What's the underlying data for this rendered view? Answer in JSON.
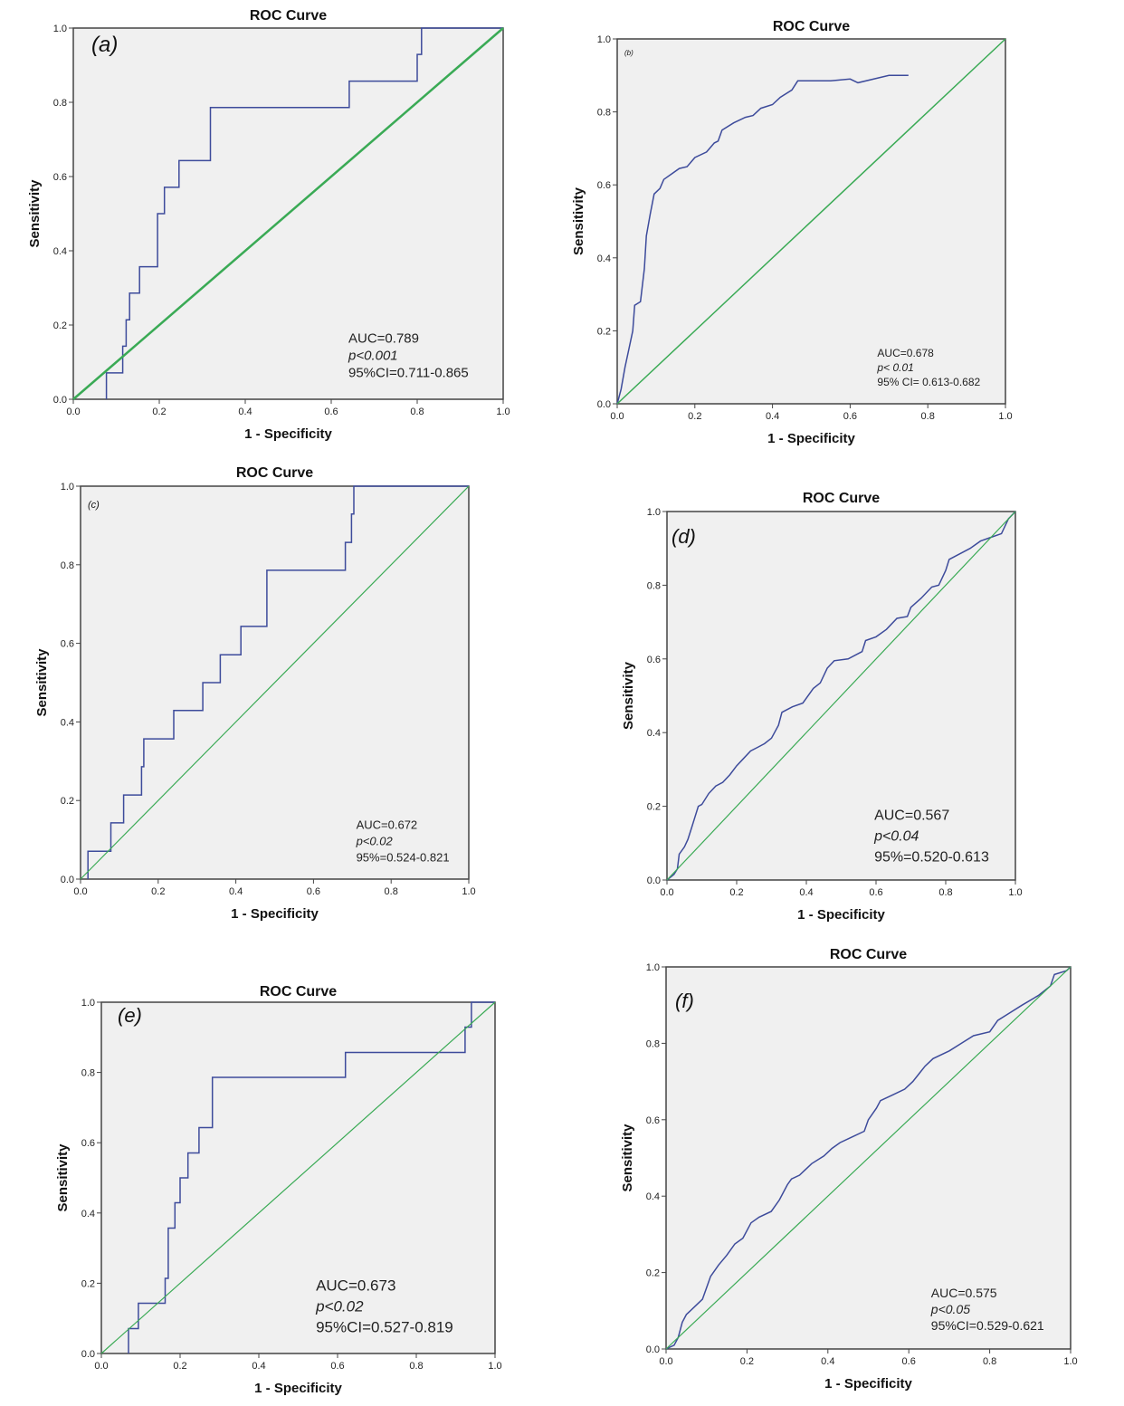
{
  "figure": {
    "colors": {
      "roc": "#3d4b9b",
      "reference": "#3aaa55",
      "plot_bg": "#f0f0f0",
      "frame": "#444444"
    }
  },
  "chart_data": [
    {
      "type": "line",
      "panel": "(a)",
      "title": "ROC Curve",
      "xlabel": "1 - Specificity",
      "ylabel": "Sensitivity",
      "xlim": [
        0,
        1
      ],
      "ylim": [
        0,
        1
      ],
      "xticks": [
        "0.0",
        "0.2",
        "0.4",
        "0.6",
        "0.8",
        "1.0"
      ],
      "yticks": [
        "0.0",
        "0.2",
        "0.4",
        "0.6",
        "0.8",
        "1.0"
      ],
      "grid": false,
      "annotations": [
        "AUC=0.789",
        "p<0.001",
        "95%CI=0.711-0.865"
      ],
      "series": [
        {
          "name": "ROC",
          "x": [
            0.077,
            0.077,
            0.115,
            0.115,
            0.123,
            0.123,
            0.131,
            0.131,
            0.154,
            0.154,
            0.196,
            0.196,
            0.212,
            0.212,
            0.246,
            0.246,
            0.319,
            0.319,
            0.642,
            0.642,
            0.8,
            0.8,
            0.81,
            0.81,
            1.0
          ],
          "y": [
            0,
            0.071,
            0.071,
            0.143,
            0.143,
            0.214,
            0.214,
            0.286,
            0.286,
            0.357,
            0.357,
            0.5,
            0.5,
            0.571,
            0.571,
            0.643,
            0.643,
            0.786,
            0.786,
            0.857,
            0.857,
            0.929,
            0.929,
            1.0,
            1.0
          ]
        },
        {
          "name": "Reference line",
          "x": [
            0,
            1
          ],
          "y": [
            0,
            1
          ]
        }
      ]
    },
    {
      "type": "line",
      "panel": "(b)",
      "title": "ROC Curve",
      "xlabel": "1 - Specificity",
      "ylabel": "Sensitivity",
      "xlim": [
        0,
        1
      ],
      "ylim": [
        0,
        1
      ],
      "xticks": [
        "0.0",
        "0.2",
        "0.4",
        "0.6",
        "0.8",
        "1.0"
      ],
      "yticks": [
        "0.0",
        "0.2",
        "0.4",
        "0.6",
        "0.8",
        "1.0"
      ],
      "grid": false,
      "annotations": [
        "AUC=0.678",
        "p< 0.01",
        "95% CI= 0.613-0.682"
      ],
      "series": [
        {
          "name": "ROC",
          "x": [
            0,
            0.01,
            0.02,
            0.03,
            0.04,
            0.045,
            0.06,
            0.07,
            0.075,
            0.085,
            0.095,
            0.11,
            0.12,
            0.14,
            0.16,
            0.18,
            0.2,
            0.23,
            0.25,
            0.26,
            0.27,
            0.3,
            0.33,
            0.35,
            0.37,
            0.4,
            0.42,
            0.45,
            0.465,
            0.55,
            0.6,
            0.62,
            0.7,
            0.75
          ],
          "y": [
            0,
            0.04,
            0.1,
            0.15,
            0.2,
            0.27,
            0.28,
            0.37,
            0.46,
            0.52,
            0.575,
            0.59,
            0.615,
            0.63,
            0.645,
            0.65,
            0.675,
            0.69,
            0.715,
            0.72,
            0.75,
            0.77,
            0.785,
            0.79,
            0.81,
            0.82,
            0.84,
            0.86,
            0.885,
            0.885,
            0.89,
            0.88,
            0.9,
            0.9
          ]
        },
        {
          "name": "Reference line",
          "x": [
            0,
            1
          ],
          "y": [
            0,
            1
          ]
        }
      ]
    },
    {
      "type": "line",
      "panel": "(c)",
      "title": "ROC Curve",
      "xlabel": "1 - Specificity",
      "ylabel": "Sensitivity",
      "xlim": [
        0,
        1
      ],
      "ylim": [
        0,
        1
      ],
      "xticks": [
        "0.0",
        "0.2",
        "0.4",
        "0.6",
        "0.8",
        "1.0"
      ],
      "yticks": [
        "0.0",
        "0.2",
        "0.4",
        "0.6",
        "0.8",
        "1.0"
      ],
      "grid": false,
      "annotations": [
        "AUC=0.672",
        "p<0.02",
        "95%=0.524-0.821"
      ],
      "series": [
        {
          "name": "ROC",
          "x": [
            0.019,
            0.019,
            0.078,
            0.078,
            0.111,
            0.111,
            0.157,
            0.157,
            0.163,
            0.163,
            0.24,
            0.24,
            0.315,
            0.315,
            0.36,
            0.36,
            0.413,
            0.413,
            0.48,
            0.48,
            0.682,
            0.682,
            0.698,
            0.698,
            0.704,
            0.704,
            1.0
          ],
          "y": [
            0,
            0.071,
            0.071,
            0.143,
            0.143,
            0.214,
            0.214,
            0.286,
            0.286,
            0.357,
            0.357,
            0.429,
            0.429,
            0.5,
            0.5,
            0.571,
            0.571,
            0.643,
            0.643,
            0.786,
            0.786,
            0.857,
            0.857,
            0.929,
            0.929,
            1.0,
            1.0
          ]
        },
        {
          "name": "Reference line",
          "x": [
            0,
            1
          ],
          "y": [
            0,
            1
          ]
        }
      ]
    },
    {
      "type": "line",
      "panel": "(d)",
      "title": "ROC Curve",
      "xlabel": "1 - Specificity",
      "ylabel": "Sensitivity",
      "xlim": [
        0,
        1
      ],
      "ylim": [
        0,
        1
      ],
      "xticks": [
        "0.0",
        "0.2",
        "0.4",
        "0.6",
        "0.8",
        "1.0"
      ],
      "yticks": [
        "0.0",
        "0.2",
        "0.4",
        "0.6",
        "0.8",
        "1.0"
      ],
      "grid": false,
      "annotations": [
        "AUC=0.567",
        "p<0.04",
        "95%=0.520-0.613"
      ],
      "series": [
        {
          "name": "ROC",
          "x": [
            0,
            0.02,
            0.03,
            0.035,
            0.05,
            0.06,
            0.07,
            0.08,
            0.09,
            0.1,
            0.12,
            0.14,
            0.16,
            0.18,
            0.2,
            0.22,
            0.24,
            0.26,
            0.28,
            0.3,
            0.32,
            0.33,
            0.36,
            0.39,
            0.42,
            0.44,
            0.46,
            0.48,
            0.52,
            0.56,
            0.57,
            0.6,
            0.63,
            0.66,
            0.69,
            0.7,
            0.73,
            0.76,
            0.78,
            0.8,
            0.81,
            0.84,
            0.87,
            0.9,
            0.93,
            0.96,
            0.98,
            1.0
          ],
          "y": [
            0,
            0.015,
            0.03,
            0.07,
            0.09,
            0.11,
            0.14,
            0.17,
            0.2,
            0.205,
            0.235,
            0.255,
            0.265,
            0.285,
            0.31,
            0.33,
            0.35,
            0.36,
            0.37,
            0.385,
            0.42,
            0.455,
            0.47,
            0.48,
            0.52,
            0.535,
            0.575,
            0.595,
            0.6,
            0.62,
            0.65,
            0.66,
            0.68,
            0.71,
            0.715,
            0.74,
            0.765,
            0.795,
            0.8,
            0.84,
            0.87,
            0.885,
            0.9,
            0.92,
            0.93,
            0.94,
            0.98,
            1.0
          ]
        },
        {
          "name": "Reference line",
          "x": [
            0,
            1
          ],
          "y": [
            0,
            1
          ]
        }
      ]
    },
    {
      "type": "line",
      "panel": "(e)",
      "title": "ROC Curve",
      "xlabel": "1 - Specificity",
      "ylabel": "Sensitivity",
      "xlim": [
        0,
        1
      ],
      "ylim": [
        0,
        1
      ],
      "xticks": [
        "0.0",
        "0.2",
        "0.4",
        "0.6",
        "0.8",
        "1.0"
      ],
      "yticks": [
        "0.0",
        "0.2",
        "0.4",
        "0.6",
        "0.8",
        "1.0"
      ],
      "grid": false,
      "annotations": [
        "AUC=0.673",
        "p<0.02",
        "95%CI=0.527-0.819"
      ],
      "series": [
        {
          "name": "ROC",
          "x": [
            0.069,
            0.069,
            0.094,
            0.094,
            0.162,
            0.162,
            0.17,
            0.17,
            0.187,
            0.187,
            0.2,
            0.2,
            0.22,
            0.22,
            0.248,
            0.248,
            0.282,
            0.282,
            0.62,
            0.62,
            0.924,
            0.924,
            0.94,
            0.94,
            1.0
          ],
          "y": [
            0,
            0.071,
            0.071,
            0.143,
            0.143,
            0.214,
            0.214,
            0.357,
            0.357,
            0.429,
            0.429,
            0.5,
            0.5,
            0.571,
            0.571,
            0.643,
            0.643,
            0.786,
            0.786,
            0.857,
            0.857,
            0.929,
            0.929,
            1.0,
            1.0
          ]
        },
        {
          "name": "Reference line",
          "x": [
            0,
            1
          ],
          "y": [
            0,
            1
          ]
        }
      ]
    },
    {
      "type": "line",
      "panel": "(f)",
      "title": "ROC Curve",
      "xlabel": "1 - Specificity",
      "ylabel": "Sensitivity",
      "xlim": [
        0,
        1
      ],
      "ylim": [
        0,
        1
      ],
      "xticks": [
        "0.0",
        "0.2",
        "0.4",
        "0.6",
        "0.8",
        "1.0"
      ],
      "yticks": [
        "0.0",
        "0.2",
        "0.4",
        "0.6",
        "0.8",
        "1.0"
      ],
      "grid": false,
      "annotations": [
        "AUC=0.575",
        "p<0.05",
        "95%CI=0.529-0.621"
      ],
      "series": [
        {
          "name": "ROC",
          "x": [
            0,
            0.02,
            0.03,
            0.04,
            0.05,
            0.07,
            0.09,
            0.1,
            0.11,
            0.13,
            0.15,
            0.17,
            0.19,
            0.21,
            0.23,
            0.26,
            0.28,
            0.3,
            0.31,
            0.33,
            0.36,
            0.39,
            0.41,
            0.43,
            0.46,
            0.49,
            0.5,
            0.52,
            0.53,
            0.56,
            0.59,
            0.61,
            0.64,
            0.66,
            0.7,
            0.73,
            0.76,
            0.8,
            0.82,
            0.85,
            0.88,
            0.92,
            0.95,
            0.96,
            0.99,
            1.0
          ],
          "y": [
            0,
            0.01,
            0.03,
            0.07,
            0.09,
            0.11,
            0.13,
            0.16,
            0.19,
            0.22,
            0.245,
            0.275,
            0.29,
            0.33,
            0.345,
            0.36,
            0.39,
            0.43,
            0.445,
            0.455,
            0.485,
            0.505,
            0.525,
            0.54,
            0.555,
            0.57,
            0.6,
            0.63,
            0.65,
            0.665,
            0.68,
            0.7,
            0.74,
            0.76,
            0.78,
            0.8,
            0.82,
            0.83,
            0.86,
            0.88,
            0.9,
            0.925,
            0.95,
            0.98,
            0.99,
            1.0
          ]
        },
        {
          "name": "Reference line",
          "x": [
            0,
            1
          ],
          "y": [
            0,
            1
          ]
        }
      ]
    }
  ]
}
